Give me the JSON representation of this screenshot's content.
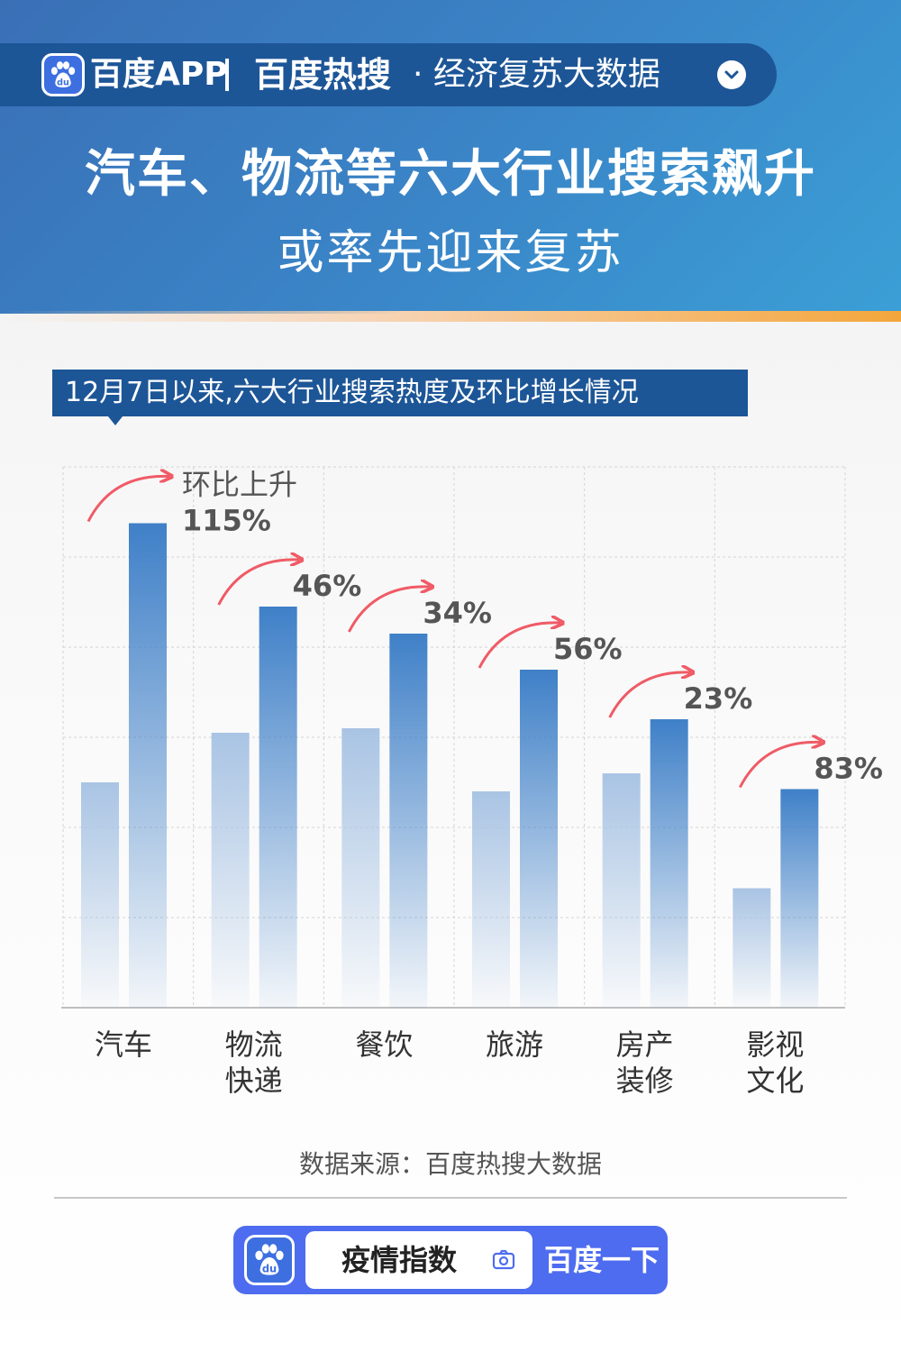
{
  "header": {
    "brand_app": "百度APP",
    "brand_hot": "百度热搜",
    "brand_sub": "· 经济复苏大数据",
    "title_line1": "汽车、物流等六大行业搜索飙升",
    "title_line2": "或率先迎来复苏"
  },
  "colors": {
    "header_blue": "#3a86c8",
    "pill_blue": "#1d5697",
    "bar_prev": "#a9c4e4",
    "bar_curr": "#3f80c8",
    "arrow_red": "#ef5b66",
    "accent_orange": "#f4a63b",
    "search_blue": "#4e6cf0"
  },
  "chart_data": {
    "type": "bar",
    "title": "12月7日以来,六大行业搜索热度及环比增长情况",
    "categories": [
      [
        "汽车"
      ],
      [
        "物流",
        "快递"
      ],
      [
        "餐饮"
      ],
      [
        "旅游"
      ],
      [
        "房产",
        "装修"
      ],
      [
        "影视",
        "文化"
      ]
    ],
    "series": [
      {
        "values": [
          100,
          122,
          124,
          96,
          104,
          53
        ]
      },
      {
        "values": [
          215,
          178,
          166,
          150,
          128,
          97
        ]
      }
    ],
    "growth_labels": [
      "115%",
      "46%",
      "34%",
      "56%",
      "23%",
      "83%"
    ],
    "first_annotation_prefix": "环比上升",
    "ylim": [
      0,
      240
    ],
    "grid": true,
    "legend": "none"
  },
  "footer": {
    "source": "数据来源：百度热搜大数据",
    "search_text": "疫情指数",
    "search_button": "百度一下",
    "camera_icon": "camera-icon",
    "logo_icon": "baidu-paw-icon"
  }
}
